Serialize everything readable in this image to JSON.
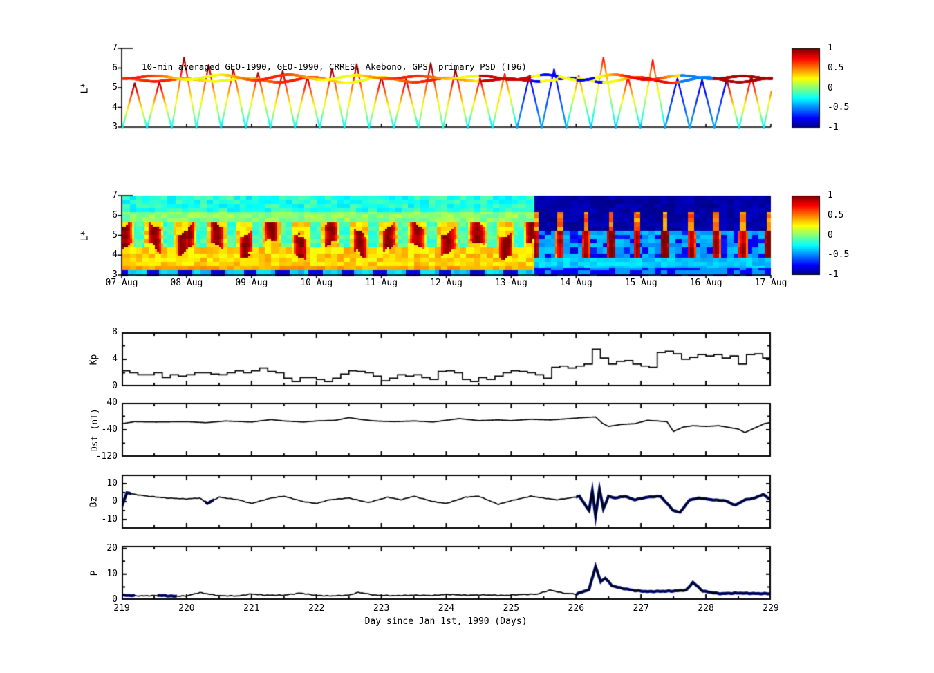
{
  "figure_background": "#ffffff",
  "colors": {
    "line": "#000000",
    "navy_overlay": "#00107f",
    "axis": "#000000",
    "colormap": "jet"
  },
  "x_axis": {
    "label": "Day since Jan 1st, 1990 (Days)",
    "ticks": [
      "219",
      "220",
      "221",
      "222",
      "223",
      "224",
      "225",
      "226",
      "227",
      "228",
      "229"
    ],
    "range": [
      219,
      229
    ]
  },
  "chart_data": [
    {
      "id": "psd-orbit-scatter",
      "type": "scatter",
      "title": "10-min averaged GEO-1990, GEO-1990, CRRES, Akebono, GPS  primary PSD (T96)",
      "ylabel": "L*",
      "ylim": [
        3,
        7
      ],
      "yticks": [
        "7",
        "6",
        "5",
        "4",
        "3"
      ],
      "xrange_days": [
        219,
        229
      ],
      "colorbar": {
        "range": [
          -1,
          1
        ],
        "ticks": [
          "1",
          "0.5",
          "0",
          "-0.5",
          "-1"
        ],
        "colormap": "jet"
      },
      "series_note": "Satellite L* orbit traces colored by log10 PSD; flat GEO traces near L*=5.5, triangular CRRES/Akebono/GPS passes 3<L*<6.6; warm colors (0.3..1) before day 225, cold/navy (-1..-0.4) mixed days 225-228, red return after day 228.3",
      "synthesis": {
        "seed": 7,
        "orbit_period_days": 0.38,
        "geo_L": [
          5.45,
          5.58
        ],
        "quiet_until_day": 224.8,
        "storm_start_day": 225.0,
        "red_return_day": 228.3
      }
    },
    {
      "id": "psd-heatmap",
      "type": "heatmap",
      "ylabel": "L*",
      "ylim": [
        3,
        7
      ],
      "yticks": [
        "7",
        "6",
        "5",
        "4",
        "3"
      ],
      "xticklabels": [
        "07-Aug",
        "08-Aug",
        "09-Aug",
        "10-Aug",
        "11-Aug",
        "12-Aug",
        "13-Aug",
        "14-Aug",
        "15-Aug",
        "16-Aug",
        "17-Aug"
      ],
      "colorbar": {
        "range": [
          -1,
          1
        ],
        "ticks": [
          "1",
          "0.5",
          "0",
          "-0.5",
          "-1"
        ],
        "colormap": "jet"
      },
      "value_range": [
        -1,
        1
      ],
      "series_note": "Interpolated PSD map: quiet period (07-13 Aug) green/cyan background with daily red-orange enhancements at L*=4.2-5.8 and blue patches below L*=3.4; storm period (13-17 Aug) dark-blue depletion above L*=5 with recurring yellow/orange injections at L*=3.8-5.5; red enhancement returns near 17-Aug",
      "synthesis": {
        "seed": 11,
        "transition_day": 6.35,
        "blob_period_days": 0.45,
        "spike_period_days": 0.4
      }
    },
    {
      "id": "kp-index",
      "type": "line",
      "line_style": "step",
      "ylabel": "Kp",
      "ylim": [
        0,
        8
      ],
      "yticks": [
        "8",
        "4",
        "0"
      ],
      "ytick_values": [
        8,
        4,
        0
      ],
      "x_start_day": 219,
      "step_hours": 3,
      "values": [
        2.3,
        2.0,
        1.7,
        1.7,
        2.0,
        1.3,
        1.7,
        1.5,
        1.7,
        2.0,
        2.0,
        1.8,
        1.7,
        2.0,
        2.3,
        2.0,
        2.3,
        2.7,
        2.2,
        2.0,
        1.2,
        0.7,
        1.3,
        1.3,
        1.0,
        0.7,
        1.2,
        1.8,
        2.3,
        2.2,
        2.0,
        1.5,
        0.8,
        1.2,
        1.7,
        1.5,
        1.7,
        1.3,
        1.0,
        2.2,
        2.3,
        2.0,
        1.0,
        0.7,
        1.3,
        1.0,
        1.5,
        2.0,
        2.3,
        2.2,
        2.0,
        1.7,
        1.2,
        2.8,
        3.0,
        2.7,
        3.0,
        3.3,
        5.5,
        4.2,
        3.3,
        3.7,
        3.8,
        3.3,
        3.0,
        2.8,
        5.0,
        5.2,
        4.8,
        4.0,
        4.3,
        4.7,
        4.5,
        4.7,
        4.2,
        4.5,
        3.3,
        4.7,
        4.8,
        4.2
      ]
    },
    {
      "id": "dst-index",
      "type": "line",
      "line_style": "linear",
      "ylabel": "Dst (nT)",
      "ylim": [
        -120,
        40
      ],
      "yticks": [
        "40",
        "-40",
        "-120"
      ],
      "ytick_values": [
        40,
        -40,
        -120
      ],
      "points": [
        [
          219,
          -22
        ],
        [
          219.2,
          -16
        ],
        [
          219.5,
          -17
        ],
        [
          220,
          -16
        ],
        [
          220.3,
          -19
        ],
        [
          220.6,
          -14
        ],
        [
          221,
          -17
        ],
        [
          221.3,
          -10
        ],
        [
          221.5,
          -14
        ],
        [
          221.8,
          -17
        ],
        [
          222,
          -14
        ],
        [
          222.3,
          -12
        ],
        [
          222.5,
          -4
        ],
        [
          222.7,
          -10
        ],
        [
          222.9,
          -14
        ],
        [
          223.2,
          -16
        ],
        [
          223.5,
          -14
        ],
        [
          223.8,
          -17
        ],
        [
          224,
          -12
        ],
        [
          224.2,
          -7
        ],
        [
          224.5,
          -13
        ],
        [
          224.8,
          -11
        ],
        [
          225,
          -13
        ],
        [
          225.3,
          -9
        ],
        [
          225.6,
          -11
        ],
        [
          225.9,
          -7
        ],
        [
          226.1,
          -4
        ],
        [
          226.3,
          -2
        ],
        [
          226.4,
          -20
        ],
        [
          226.5,
          -30
        ],
        [
          226.7,
          -24
        ],
        [
          226.9,
          -22
        ],
        [
          227.1,
          -12
        ],
        [
          227.25,
          -14
        ],
        [
          227.4,
          -16
        ],
        [
          227.5,
          -45
        ],
        [
          227.65,
          -32
        ],
        [
          227.8,
          -28
        ],
        [
          228,
          -30
        ],
        [
          228.2,
          -28
        ],
        [
          228.35,
          -33
        ],
        [
          228.5,
          -38
        ],
        [
          228.6,
          -48
        ],
        [
          228.75,
          -35
        ],
        [
          228.9,
          -22
        ],
        [
          229,
          -18
        ]
      ]
    },
    {
      "id": "bz",
      "type": "line",
      "line_style": "linear",
      "ylabel": "Bz",
      "ylim": [
        -15,
        15
      ],
      "yticks": [
        "10",
        "0",
        "-10"
      ],
      "ytick_values": [
        10,
        0,
        -10
      ],
      "points": [
        [
          219,
          -3
        ],
        [
          219.08,
          5
        ],
        [
          219.2,
          4
        ],
        [
          219.4,
          3
        ],
        [
          219.7,
          2
        ],
        [
          220,
          1.5
        ],
        [
          220.2,
          2
        ],
        [
          220.32,
          -1
        ],
        [
          220.5,
          2.5
        ],
        [
          220.8,
          1
        ],
        [
          221,
          -1
        ],
        [
          221.3,
          2
        ],
        [
          221.5,
          3
        ],
        [
          221.8,
          0
        ],
        [
          222,
          -1
        ],
        [
          222.2,
          1
        ],
        [
          222.5,
          2
        ],
        [
          222.8,
          -0.5
        ],
        [
          223.1,
          2.5
        ],
        [
          223.3,
          1
        ],
        [
          223.5,
          3
        ],
        [
          223.8,
          0
        ],
        [
          224,
          -1
        ],
        [
          224.3,
          2.5
        ],
        [
          224.5,
          3
        ],
        [
          224.8,
          -1.5
        ],
        [
          225,
          0.5
        ],
        [
          225.3,
          3
        ],
        [
          225.5,
          2
        ],
        [
          225.7,
          1
        ],
        [
          225.9,
          2
        ],
        [
          226.05,
          3
        ],
        [
          226.2,
          -5
        ],
        [
          226.25,
          6
        ],
        [
          226.3,
          -8
        ],
        [
          226.36,
          7
        ],
        [
          226.42,
          -4
        ],
        [
          226.5,
          3
        ],
        [
          226.6,
          2
        ],
        [
          226.75,
          3
        ],
        [
          226.9,
          1
        ],
        [
          227.1,
          2.5
        ],
        [
          227.3,
          3
        ],
        [
          227.5,
          -5
        ],
        [
          227.6,
          -6
        ],
        [
          227.75,
          1
        ],
        [
          227.9,
          2
        ],
        [
          228.1,
          1
        ],
        [
          228.3,
          0.5
        ],
        [
          228.45,
          -2
        ],
        [
          228.6,
          1
        ],
        [
          228.75,
          2
        ],
        [
          228.88,
          4
        ],
        [
          229,
          1
        ]
      ],
      "navy_segments": [
        [
          219.0,
          219.15
        ],
        [
          220.28,
          220.42
        ],
        [
          226.0,
          229.0
        ]
      ]
    },
    {
      "id": "solar-wind-pressure",
      "type": "line",
      "line_style": "linear",
      "ylabel": "P",
      "ylim": [
        0,
        21
      ],
      "yticks": [
        "20",
        "10",
        "0"
      ],
      "ytick_values": [
        20,
        10,
        0
      ],
      "points": [
        [
          219,
          1.8
        ],
        [
          219.3,
          1.5
        ],
        [
          219.6,
          1.7
        ],
        [
          219.8,
          1.4
        ],
        [
          220,
          1.5
        ],
        [
          220.2,
          2.8
        ],
        [
          220.5,
          1.6
        ],
        [
          220.8,
          1.5
        ],
        [
          221,
          2.3
        ],
        [
          221.2,
          1.8
        ],
        [
          221.5,
          1.8
        ],
        [
          221.75,
          2.6
        ],
        [
          222,
          1.7
        ],
        [
          222.2,
          1.5
        ],
        [
          222.5,
          1.8
        ],
        [
          222.65,
          2.9
        ],
        [
          222.9,
          1.8
        ],
        [
          223.2,
          1.6
        ],
        [
          223.5,
          1.8
        ],
        [
          223.8,
          1.7
        ],
        [
          224,
          2.1
        ],
        [
          224.3,
          1.8
        ],
        [
          224.6,
          1.9
        ],
        [
          224.9,
          1.7
        ],
        [
          225.1,
          2.0
        ],
        [
          225.4,
          2.2
        ],
        [
          225.6,
          3.8
        ],
        [
          225.8,
          2.6
        ],
        [
          226,
          2.2
        ],
        [
          226.2,
          4.0
        ],
        [
          226.3,
          13
        ],
        [
          226.38,
          7
        ],
        [
          226.45,
          8.5
        ],
        [
          226.55,
          5.5
        ],
        [
          226.7,
          4.5
        ],
        [
          226.9,
          3.6
        ],
        [
          227.1,
          3.2
        ],
        [
          227.3,
          3.3
        ],
        [
          227.5,
          3.4
        ],
        [
          227.7,
          3.8
        ],
        [
          227.8,
          6.8
        ],
        [
          227.95,
          3.4
        ],
        [
          228.2,
          2.4
        ],
        [
          228.5,
          2.6
        ],
        [
          228.8,
          2.4
        ],
        [
          229,
          2.4
        ]
      ],
      "navy_segments": [
        [
          219.02,
          219.2
        ],
        [
          219.55,
          219.85
        ],
        [
          226.0,
          229.0
        ]
      ]
    }
  ]
}
